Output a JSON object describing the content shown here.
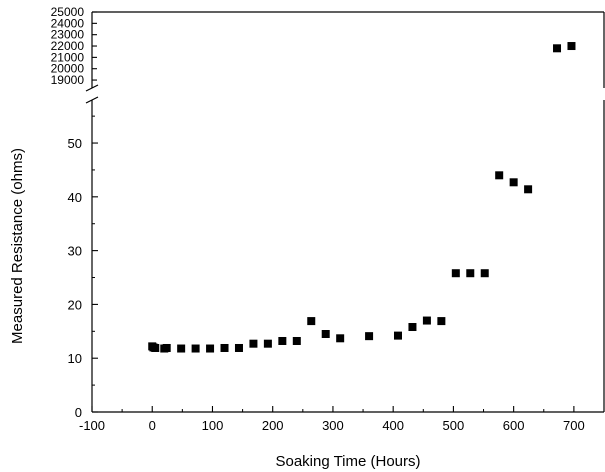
{
  "chart_data": {
    "type": "scatter",
    "title": "",
    "xlabel": "Soaking Time (Hours)",
    "ylabel": "Measured Resistance (ohms)",
    "xlim": [
      -100,
      750
    ],
    "ylim_lower": [
      0,
      58
    ],
    "ylim_upper": [
      18300,
      25000
    ],
    "broken_y_axis": true,
    "grid": false,
    "legend": "none",
    "x_ticks": [
      -100,
      0,
      100,
      200,
      300,
      400,
      500,
      600,
      700
    ],
    "x_tick_labels": [
      "-100",
      "0",
      "100",
      "200",
      "300",
      "400",
      "500",
      "600",
      "700"
    ],
    "y_ticks_lower": [
      0,
      10,
      20,
      30,
      40,
      50
    ],
    "y_tick_labels_lower": [
      "0",
      "10",
      "20",
      "30",
      "40",
      "50"
    ],
    "y_ticks_upper": [
      19000,
      20000,
      21000,
      22000,
      23000,
      24000,
      25000
    ],
    "y_tick_labels_upper": [
      "19000",
      "20000",
      "21000",
      "22000",
      "23000",
      "24000",
      "25000"
    ],
    "marker": "square",
    "marker_color": "#000000",
    "series": [
      {
        "x": [
          0,
          2,
          5,
          20,
          24,
          48,
          72,
          96,
          120,
          144,
          168,
          192,
          216,
          240,
          264,
          288,
          312,
          360,
          408,
          432,
          456,
          480,
          504,
          528,
          552,
          576,
          600,
          624,
          672,
          696
        ],
        "y": [
          12.2,
          12.0,
          11.9,
          11.8,
          11.9,
          11.8,
          11.8,
          11.8,
          11.9,
          11.9,
          12.7,
          12.7,
          13.2,
          13.2,
          16.9,
          14.5,
          13.7,
          14.1,
          14.2,
          15.8,
          17.0,
          16.9,
          25.8,
          25.8,
          25.8,
          44.0,
          42.7,
          41.4,
          21800,
          22000
        ]
      }
    ]
  }
}
